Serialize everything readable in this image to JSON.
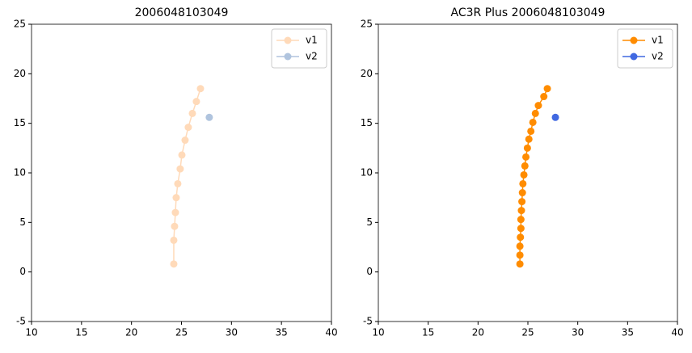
{
  "chart_data": [
    {
      "type": "line",
      "title": "2006048103049",
      "legend": "upper right",
      "xlim": [
        10,
        40
      ],
      "xticks": [
        10,
        15,
        20,
        25,
        30,
        35,
        40
      ],
      "ylim": [
        -5,
        25
      ],
      "yticks": [
        -5,
        0,
        5,
        10,
        15,
        20,
        25
      ],
      "series": [
        {
          "name": "v1",
          "color": "#ffdab9",
          "x": [
            24.23,
            24.23,
            24.31,
            24.39,
            24.47,
            24.63,
            24.87,
            25.04,
            25.36,
            25.68,
            26.09,
            26.49,
            26.9
          ],
          "values": [
            0.8,
            3.2,
            4.6,
            6.0,
            7.5,
            8.9,
            10.4,
            11.8,
            13.3,
            14.6,
            16.0,
            17.2,
            18.5
          ]
        },
        {
          "name": "v2",
          "color": "#b0c4de",
          "x": [
            27.78
          ],
          "values": [
            15.6
          ]
        }
      ]
    },
    {
      "type": "line",
      "title": "AC3R Plus 2006048103049",
      "legend": "upper right",
      "xlim": [
        10,
        40
      ],
      "xticks": [
        10,
        15,
        20,
        25,
        30,
        35,
        40
      ],
      "ylim": [
        -5,
        25
      ],
      "yticks": [
        -5,
        0,
        5,
        10,
        15,
        20,
        25
      ],
      "series": [
        {
          "name": "v1",
          "color": "#ff8c00",
          "x": [
            24.2,
            24.2,
            24.2,
            24.25,
            24.3,
            24.3,
            24.35,
            24.4,
            24.45,
            24.5,
            24.6,
            24.7,
            24.8,
            24.95,
            25.1,
            25.3,
            25.5,
            25.75,
            26.05,
            26.6,
            26.95
          ],
          "values": [
            0.8,
            1.7,
            2.6,
            3.5,
            4.4,
            5.3,
            6.2,
            7.1,
            8.0,
            8.9,
            9.8,
            10.7,
            11.6,
            12.5,
            13.4,
            14.2,
            15.1,
            16.0,
            16.8,
            17.7,
            18.5
          ]
        },
        {
          "name": "v2",
          "color": "#4169e1",
          "x": [
            27.76
          ],
          "values": [
            15.6
          ]
        }
      ]
    }
  ]
}
